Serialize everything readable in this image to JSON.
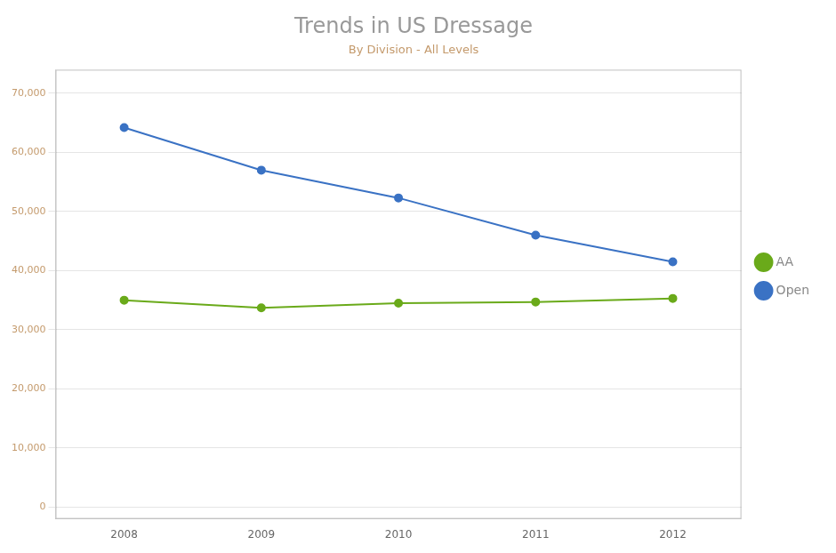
{
  "chart_data": {
    "type": "line",
    "title": "Trends in US Dressage",
    "subtitle": "By Division - All Levels",
    "x": [
      2008,
      2009,
      2010,
      2011,
      2012
    ],
    "series": [
      {
        "name": "Open",
        "color": "#3a72c4",
        "values": [
          64200,
          57000,
          52300,
          46000,
          41500
        ]
      },
      {
        "name": "AA",
        "color": "#6aaa1a",
        "values": [
          35000,
          33700,
          34500,
          34700,
          35300
        ]
      }
    ],
    "xlim": [
      2007.5,
      2012.5
    ],
    "xticks": [
      2008,
      2009,
      2010,
      2011,
      2012
    ],
    "ylim": [
      -2000,
      74000
    ],
    "yticks": [
      0,
      {
        "value": 10000,
        "label": "10,000"
      },
      {
        "value": 20000,
        "label": "20,000"
      },
      {
        "value": 30000,
        "label": "30,000"
      },
      {
        "value": 40000,
        "label": "40,000"
      },
      {
        "value": 50000,
        "label": "50,000"
      },
      {
        "value": 60000,
        "label": "60,000"
      },
      {
        "value": 70000,
        "label": "70,000"
      }
    ],
    "grid": true,
    "legend": "right",
    "marker": "circle"
  }
}
